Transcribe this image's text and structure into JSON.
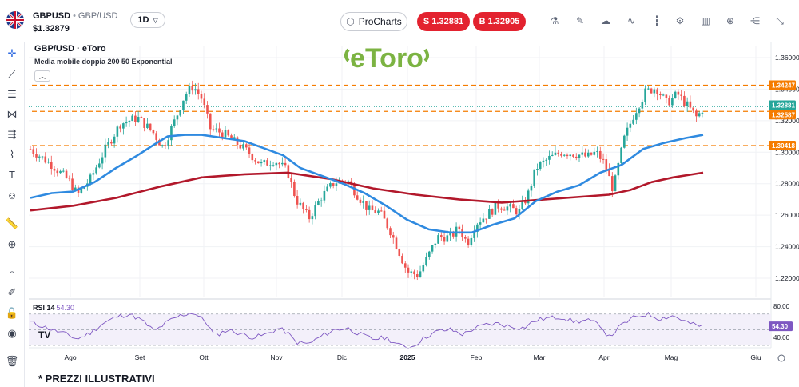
{
  "header": {
    "symbol": "GBPUSD",
    "symbol_desc": "GBP/USD",
    "price": "$1.32879",
    "timeframe": "1D",
    "procharts_label": "ProCharts",
    "sell_label": "S 1.32881",
    "buy_label": "B 1.32905",
    "tools": [
      "indicators-icon",
      "draw-icon",
      "cloud-icon",
      "line-type-icon",
      "candles-icon",
      "settings-icon",
      "chart-type-icon",
      "add-icon",
      "share-icon",
      "collapse-icon"
    ]
  },
  "left_tools": [
    "crosshair-icon",
    "trendline-icon",
    "fib-icon",
    "pattern-icon",
    "measure-icon",
    "brush-icon",
    "text-icon",
    "emoji-icon",
    "ruler-icon",
    "zoom-icon",
    "magnet-icon",
    "pencil-lock-icon",
    "lock-icon",
    "eye-icon",
    "trash-icon"
  ],
  "chart": {
    "title": "GBP/USD · eToro",
    "indicator_label": "Media mobile doppia 200 50 Exponential",
    "watermark": "eToro",
    "rsi_label": "RSI 14",
    "rsi_value": "54.30",
    "footnote": "* PREZZI ILLUSTRATIVI"
  },
  "colors": {
    "sell_buy": "#e3222f",
    "ema_fast": "#2f8ae0",
    "ema_slow": "#b2182b",
    "level": "#f57c00",
    "up": "#26a69a",
    "down": "#ef5350",
    "rsi": "#7e57c2",
    "current_price_tag": "#26a69a",
    "watermark": "#7cb342"
  },
  "chart_data": {
    "type": "candlestick",
    "y_ticks": [
      "1.36000",
      "1.34000",
      "1.32000",
      "1.30000",
      "1.28000",
      "1.26000",
      "1.24000",
      "1.22000"
    ],
    "ylim": [
      1.205,
      1.365
    ],
    "x_ticks": [
      "Ago",
      "Set",
      "Ott",
      "Nov",
      "Dic",
      "2025",
      "Feb",
      "Mar",
      "Apr",
      "Mag",
      "Giu"
    ],
    "price_tags": [
      {
        "label": "1.34247",
        "value": 1.34247,
        "kind": "level"
      },
      {
        "label": "1.32881",
        "value": 1.32881,
        "kind": "current"
      },
      {
        "label": "1.32587",
        "value": 1.32587,
        "kind": "level"
      },
      {
        "label": "1.30418",
        "value": 1.30418,
        "kind": "level"
      }
    ],
    "price_path": [
      [
        0,
        1.302
      ],
      [
        10,
        1.292
      ],
      [
        18,
        1.282
      ],
      [
        22,
        1.273
      ],
      [
        28,
        1.283
      ],
      [
        35,
        1.302
      ],
      [
        42,
        1.318
      ],
      [
        50,
        1.322
      ],
      [
        57,
        1.313
      ],
      [
        62,
        1.303
      ],
      [
        68,
        1.322
      ],
      [
        72,
        1.336
      ],
      [
        76,
        1.342
      ],
      [
        80,
        1.334
      ],
      [
        84,
        1.315
      ],
      [
        90,
        1.312
      ],
      [
        100,
        1.302
      ],
      [
        108,
        1.292
      ],
      [
        114,
        1.295
      ],
      [
        120,
        1.288
      ],
      [
        124,
        1.27
      ],
      [
        130,
        1.258
      ],
      [
        136,
        1.272
      ],
      [
        142,
        1.281
      ],
      [
        148,
        1.282
      ],
      [
        153,
        1.272
      ],
      [
        158,
        1.263
      ],
      [
        163,
        1.262
      ],
      [
        168,
        1.25
      ],
      [
        172,
        1.237
      ],
      [
        176,
        1.224
      ],
      [
        181,
        1.222
      ],
      [
        186,
        1.235
      ],
      [
        190,
        1.246
      ],
      [
        196,
        1.246
      ],
      [
        200,
        1.252
      ],
      [
        204,
        1.242
      ],
      [
        208,
        1.255
      ],
      [
        213,
        1.26
      ],
      [
        218,
        1.266
      ],
      [
        223,
        1.265
      ],
      [
        228,
        1.262
      ],
      [
        232,
        1.272
      ],
      [
        236,
        1.29
      ],
      [
        242,
        1.296
      ],
      [
        248,
        1.3
      ],
      [
        254,
        1.299
      ],
      [
        260,
        1.297
      ],
      [
        264,
        1.3
      ],
      [
        268,
        1.293
      ],
      [
        272,
        1.276
      ],
      [
        277,
        1.308
      ],
      [
        282,
        1.325
      ],
      [
        287,
        1.338
      ],
      [
        292,
        1.341
      ],
      [
        297,
        1.331
      ],
      [
        302,
        1.337
      ],
      [
        307,
        1.329
      ],
      [
        311,
        1.322
      ],
      [
        314,
        1.328
      ]
    ],
    "ema_fast_path": [
      [
        0,
        1.271
      ],
      [
        10,
        1.274
      ],
      [
        20,
        1.275
      ],
      [
        30,
        1.281
      ],
      [
        40,
        1.29
      ],
      [
        50,
        1.298
      ],
      [
        58,
        1.305
      ],
      [
        64,
        1.31
      ],
      [
        72,
        1.311
      ],
      [
        80,
        1.311
      ],
      [
        90,
        1.309
      ],
      [
        100,
        1.307
      ],
      [
        110,
        1.302
      ],
      [
        118,
        1.298
      ],
      [
        126,
        1.29
      ],
      [
        136,
        1.285
      ],
      [
        146,
        1.28
      ],
      [
        156,
        1.274
      ],
      [
        166,
        1.266
      ],
      [
        176,
        1.257
      ],
      [
        186,
        1.251
      ],
      [
        196,
        1.249
      ],
      [
        206,
        1.249
      ],
      [
        216,
        1.254
      ],
      [
        226,
        1.258
      ],
      [
        236,
        1.269
      ],
      [
        246,
        1.275
      ],
      [
        256,
        1.279
      ],
      [
        266,
        1.287
      ],
      [
        276,
        1.292
      ],
      [
        286,
        1.302
      ],
      [
        296,
        1.306
      ],
      [
        306,
        1.309
      ],
      [
        314,
        1.311
      ]
    ],
    "ema_slow_path": [
      [
        0,
        1.263
      ],
      [
        20,
        1.266
      ],
      [
        40,
        1.271
      ],
      [
        60,
        1.278
      ],
      [
        80,
        1.284
      ],
      [
        100,
        1.286
      ],
      [
        120,
        1.287
      ],
      [
        140,
        1.283
      ],
      [
        160,
        1.277
      ],
      [
        180,
        1.273
      ],
      [
        200,
        1.27
      ],
      [
        220,
        1.268
      ],
      [
        240,
        1.27
      ],
      [
        260,
        1.272
      ],
      [
        270,
        1.273
      ],
      [
        280,
        1.276
      ],
      [
        290,
        1.281
      ],
      [
        300,
        1.284
      ],
      [
        314,
        1.287
      ]
    ],
    "rsi": {
      "label": "RSI 14",
      "current": 54.3,
      "levels": [
        70,
        50,
        30
      ],
      "tick_labels": [
        "80.00",
        "40.00"
      ],
      "current_label": "54.30",
      "path": [
        [
          0,
          60
        ],
        [
          8,
          52
        ],
        [
          16,
          45
        ],
        [
          22,
          38
        ],
        [
          28,
          46
        ],
        [
          34,
          58
        ],
        [
          40,
          66
        ],
        [
          46,
          70
        ],
        [
          52,
          62
        ],
        [
          58,
          48
        ],
        [
          64,
          60
        ],
        [
          70,
          68
        ],
        [
          76,
          72
        ],
        [
          82,
          60
        ],
        [
          86,
          42
        ],
        [
          92,
          50
        ],
        [
          98,
          45
        ],
        [
          104,
          40
        ],
        [
          110,
          44
        ],
        [
          116,
          52
        ],
        [
          120,
          46
        ],
        [
          124,
          34
        ],
        [
          130,
          32
        ],
        [
          136,
          42
        ],
        [
          142,
          50
        ],
        [
          148,
          52
        ],
        [
          154,
          44
        ],
        [
          160,
          38
        ],
        [
          166,
          40
        ],
        [
          172,
          30
        ],
        [
          178,
          28
        ],
        [
          184,
          40
        ],
        [
          190,
          48
        ],
        [
          196,
          50
        ],
        [
          202,
          44
        ],
        [
          206,
          50
        ],
        [
          212,
          56
        ],
        [
          218,
          58
        ],
        [
          224,
          54
        ],
        [
          230,
          52
        ],
        [
          236,
          62
        ],
        [
          242,
          65
        ],
        [
          248,
          66
        ],
        [
          254,
          60
        ],
        [
          260,
          62
        ],
        [
          266,
          56
        ],
        [
          270,
          40
        ],
        [
          276,
          56
        ],
        [
          282,
          66
        ],
        [
          288,
          70
        ],
        [
          294,
          64
        ],
        [
          300,
          68
        ],
        [
          306,
          60
        ],
        [
          310,
          56
        ],
        [
          314,
          54
        ]
      ]
    }
  }
}
